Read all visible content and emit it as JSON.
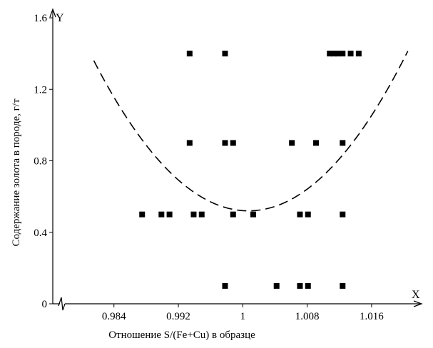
{
  "chart_data": {
    "type": "scatter",
    "title": "",
    "xlabel": "Отношение S/(Fe+Cu) в образце",
    "ylabel": "Содержание золота в породе, г/т",
    "x_axis_letter": "X",
    "y_axis_letter": "Y",
    "xlim": [
      0.978,
      1.0215
    ],
    "ylim": [
      0,
      1.6
    ],
    "x_axis_break": true,
    "x_ticks": [
      {
        "value": 0.984,
        "label": "0.984"
      },
      {
        "value": 0.992,
        "label": "0.992"
      },
      {
        "value": 1.0,
        "label": "1"
      },
      {
        "value": 1.008,
        "label": "1.008"
      },
      {
        "value": 1.016,
        "label": "1.016"
      }
    ],
    "y_ticks": [
      {
        "value": 0,
        "label": "0"
      },
      {
        "value": 0.4,
        "label": "0.4"
      },
      {
        "value": 0.8,
        "label": "0.8"
      },
      {
        "value": 1.2,
        "label": "1.2"
      },
      {
        "value": 1.6,
        "label": "1.6"
      }
    ],
    "grid": false,
    "legend": "none",
    "series": [
      {
        "kind": "points",
        "marker": "square",
        "color": "#000000",
        "points": [
          {
            "x": 0.9934,
            "y": 1.4
          },
          {
            "x": 0.9978,
            "y": 1.4
          },
          {
            "x": 1.0108,
            "y": 1.4
          },
          {
            "x": 1.0113,
            "y": 1.4
          },
          {
            "x": 1.0118,
            "y": 1.4
          },
          {
            "x": 1.0124,
            "y": 1.4
          },
          {
            "x": 1.0134,
            "y": 1.4
          },
          {
            "x": 1.0144,
            "y": 1.4
          },
          {
            "x": 0.9934,
            "y": 0.9
          },
          {
            "x": 0.9978,
            "y": 0.9
          },
          {
            "x": 0.9988,
            "y": 0.9
          },
          {
            "x": 1.0061,
            "y": 0.9
          },
          {
            "x": 1.0091,
            "y": 0.9
          },
          {
            "x": 1.0124,
            "y": 0.9
          },
          {
            "x": 0.9875,
            "y": 0.5
          },
          {
            "x": 0.9899,
            "y": 0.5
          },
          {
            "x": 0.9909,
            "y": 0.5
          },
          {
            "x": 0.9939,
            "y": 0.5
          },
          {
            "x": 0.9949,
            "y": 0.5
          },
          {
            "x": 0.9988,
            "y": 0.5
          },
          {
            "x": 1.0013,
            "y": 0.5
          },
          {
            "x": 1.0071,
            "y": 0.5
          },
          {
            "x": 1.0081,
            "y": 0.5
          },
          {
            "x": 1.0124,
            "y": 0.5
          },
          {
            "x": 0.9978,
            "y": 0.1
          },
          {
            "x": 1.0042,
            "y": 0.1
          },
          {
            "x": 1.0071,
            "y": 0.1
          },
          {
            "x": 1.0081,
            "y": 0.1
          },
          {
            "x": 1.0124,
            "y": 0.1
          }
        ]
      },
      {
        "kind": "curve",
        "style": "dashed",
        "color": "#000000",
        "fit": "quadratic",
        "vertex_x": 1.0007,
        "vertex_y": 0.52,
        "coefficient": 2280,
        "x_range": [
          0.9815,
          1.0205
        ]
      }
    ]
  }
}
